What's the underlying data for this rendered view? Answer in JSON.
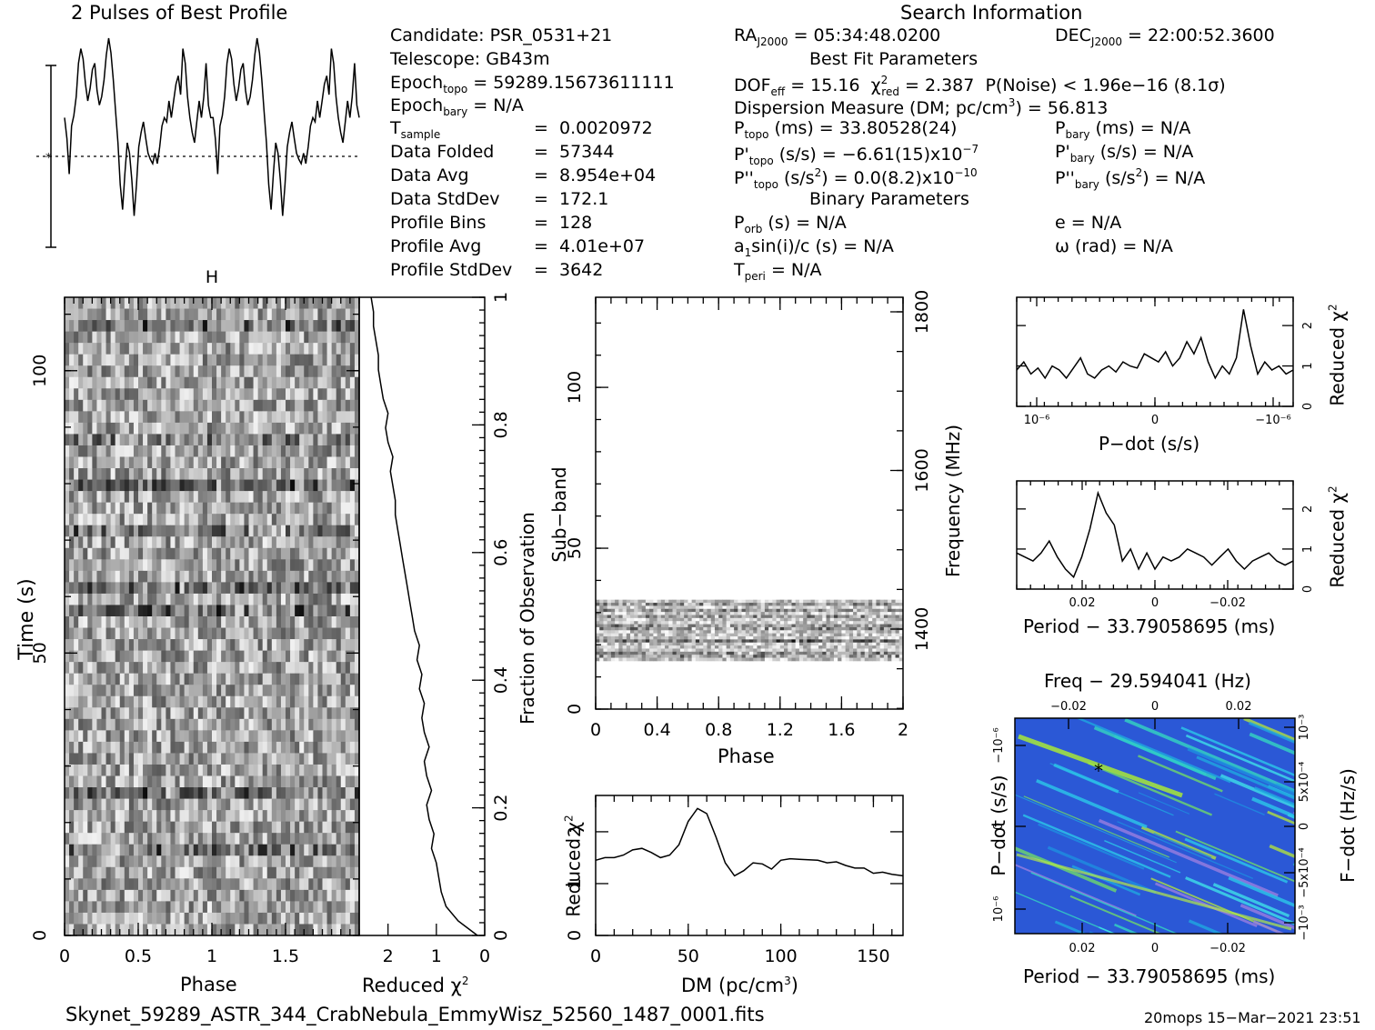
{
  "header": {
    "profile_title": "2 Pulses of Best Profile",
    "search_title": "Search Information",
    "best_fit_title": "Best Fit Parameters",
    "binary_title": "Binary Parameters",
    "candidate": "Candidate:  PSR_0531+21",
    "telescope": "Telescope:  GB43m",
    "epoch_topo": "= 59289.15673611111",
    "epoch_bary": "= N/A",
    "t_sample_val": "0.0020972",
    "data_folded_label": "Data Folded",
    "data_folded_val": "57344",
    "data_avg_label": "Data Avg",
    "data_avg_val": "8.954e+04",
    "data_std_label": "Data StdDev",
    "data_std_val": "172.1",
    "profile_bins_label": "Profile Bins",
    "profile_bins_val": "128",
    "profile_avg_label": "Profile Avg",
    "profile_avg_val": "4.01e+07",
    "profile_std_label": "Profile StdDev",
    "profile_std_val": "3642",
    "ra": "= 05:34:48.0200",
    "dec": "= 22:00:52.3600",
    "dof_val": "= 15.16",
    "chi_val": "= 2.387",
    "pnoise": "P(Noise) < 1.96e−16   (8.1σ)",
    "dm_line_a": "Dispersion Measure (DM; pc/cm",
    "dm_line_b": ") = 56.813",
    "p_topo": "(ms) =  33.80528(24)",
    "p_bary": "(ms) = N/A",
    "pd_topo": "(s/s) = −6.61(15)x10",
    "pd_topo_exp": "−7",
    "pd_bary": "(s/s) = N/A",
    "pdd_topo": "(s/s",
    "pdd_topo_b": ") = 0.0(8.2)x10",
    "pdd_topo_exp": "−10",
    "pdd_bary": "(s/s",
    "pdd_bary_b": ") = N/A",
    "p_orb": "(s) = N/A",
    "e_val": "e = N/A",
    "a1": "a",
    "a1_b": "sin(i)/c (s) = N/A",
    "omega": "ω (rad) = N/A",
    "t_peri": "= N/A"
  },
  "footer": {
    "filename": "Skynet_59289_ASTR_344_CrabNebula_EmmyWisz_52560_1487_0001.fits",
    "stamp": "20mops 15−Mar−2021 23:51"
  },
  "labels": {
    "phase": "Phase",
    "time": "Time (s)",
    "reduced": "Reduced χ",
    "fraction": "Fraction of Observation",
    "subband": "Sub−band",
    "frequency": "Frequency (MHz)",
    "dm": "DM (pc/cm",
    "dm_close": ")",
    "pdot": "P−dot (s/s)",
    "period": "Period − 33.79058695 (ms)",
    "freq_top": "Freq − 29.594041 (Hz)",
    "fdot": "F−dot (Hz/s)"
  },
  "chart_data": [
    {
      "type": "line",
      "name": "profile",
      "title": "2 Pulses of Best Profile",
      "x": "phase 0-2",
      "values": [
        0.62,
        0.52,
        0.35,
        0.58,
        0.63,
        0.72,
        0.88,
        0.95,
        0.9,
        0.78,
        0.7,
        0.76,
        0.85,
        0.88,
        0.75,
        0.68,
        0.72,
        0.8,
        0.92,
        1.0,
        0.93,
        0.8,
        0.65,
        0.5,
        0.3,
        0.18,
        0.35,
        0.5,
        0.45,
        0.32,
        0.15,
        0.3,
        0.48,
        0.55,
        0.6,
        0.52,
        0.45,
        0.42,
        0.4,
        0.45,
        0.4,
        0.48,
        0.58,
        0.62,
        0.6,
        0.7,
        0.62,
        0.7,
        0.78,
        0.82,
        0.73,
        0.95,
        0.88,
        0.72,
        0.62,
        0.55,
        0.5,
        0.6,
        0.7,
        0.62,
        0.72,
        0.88,
        0.68,
        0.62,
        0.62,
        0.52,
        0.35,
        0.58,
        0.63,
        0.72,
        0.88,
        0.95,
        0.9,
        0.78,
        0.7,
        0.76,
        0.85,
        0.88,
        0.75,
        0.68,
        0.72,
        0.8,
        0.92,
        1.0,
        0.93,
        0.8,
        0.65,
        0.5,
        0.3,
        0.18,
        0.35,
        0.5,
        0.45,
        0.32,
        0.15,
        0.3,
        0.48,
        0.55,
        0.6,
        0.52,
        0.45,
        0.42,
        0.4,
        0.45,
        0.4,
        0.48,
        0.58,
        0.62,
        0.6,
        0.7,
        0.62,
        0.7,
        0.78,
        0.82,
        0.73,
        0.95,
        0.88,
        0.72,
        0.62,
        0.55,
        0.5,
        0.6,
        0.7,
        0.62,
        0.72,
        0.88,
        0.68,
        0.62
      ]
    },
    {
      "type": "heatmap",
      "name": "time-phase",
      "xlabel": "Phase",
      "ylabel": "Time (s)",
      "xlim": [
        0,
        2
      ],
      "ylim": [
        0,
        113
      ],
      "x_ticks": [
        "0",
        "0.5",
        "1",
        "1.5"
      ],
      "y_ticks": [
        "0",
        "50",
        "100"
      ],
      "right_ticks": [
        "0",
        "0.2",
        "0.4",
        "0.6",
        "0.8",
        "1"
      ]
    },
    {
      "type": "line",
      "name": "reduced-chi-vs-time",
      "xlabel": "Reduced χ²",
      "x_ticks": [
        "2",
        "1",
        "0"
      ],
      "values": [
        0.15,
        0.55,
        0.8,
        0.9,
        0.95,
        1.0,
        1.1,
        1.05,
        1.15,
        1.2,
        1.1,
        1.2,
        1.25,
        1.15,
        1.25,
        1.3,
        1.25,
        1.35,
        1.3,
        1.4,
        1.35,
        1.45,
        1.5,
        1.55,
        1.6,
        1.65,
        1.7,
        1.75,
        1.8,
        1.85,
        1.85,
        1.9,
        1.95,
        1.9,
        2.0,
        2.05,
        2.0,
        2.1,
        2.15,
        2.2,
        2.2,
        2.25,
        2.3,
        2.3,
        2.35
      ]
    },
    {
      "type": "heatmap",
      "name": "subband-phase",
      "xlabel": "Phase",
      "ylabel": "Sub−band",
      "xlim": [
        0,
        2
      ],
      "ylim": [
        0,
        128
      ],
      "x_ticks": [
        "0",
        "0.4",
        "0.8",
        "1.2",
        "1.6",
        "2"
      ],
      "y_ticks": [
        "0",
        "50",
        "100"
      ],
      "freq_ticks": [
        "1400",
        "1600",
        "1800"
      ]
    },
    {
      "type": "line",
      "name": "dm-curve",
      "xlabel": "DM (pc/cm³)",
      "ylabel": "Reduced χ²",
      "xlim": [
        0,
        166
      ],
      "ylim": [
        0,
        2.7
      ],
      "x_ticks": [
        "0",
        "50",
        "100",
        "150"
      ],
      "y_ticks": [
        "0",
        "1",
        "2"
      ],
      "x": [
        0,
        5,
        10,
        15,
        20,
        25,
        30,
        35,
        40,
        45,
        50,
        55,
        60,
        65,
        70,
        75,
        80,
        85,
        90,
        95,
        100,
        105,
        110,
        115,
        120,
        125,
        130,
        135,
        140,
        145,
        150,
        155,
        160,
        166
      ],
      "values": [
        1.45,
        1.5,
        1.5,
        1.55,
        1.65,
        1.68,
        1.6,
        1.5,
        1.55,
        1.75,
        2.2,
        2.45,
        2.35,
        1.9,
        1.4,
        1.15,
        1.25,
        1.4,
        1.38,
        1.28,
        1.45,
        1.48,
        1.47,
        1.46,
        1.45,
        1.4,
        1.42,
        1.35,
        1.3,
        1.3,
        1.2,
        1.22,
        1.18,
        1.15
      ]
    },
    {
      "type": "line",
      "name": "pdot-curve",
      "xlabel": "P−dot (s/s)",
      "ylabel": "Reduced χ²",
      "ylim": [
        0,
        2.7
      ],
      "x_ticks": [
        "10⁻⁶",
        "0",
        "−10⁻⁶"
      ],
      "y_ticks": [
        "0",
        "1",
        "2"
      ],
      "values": [
        0.9,
        1.1,
        0.8,
        0.95,
        0.7,
        1.0,
        0.9,
        0.7,
        0.95,
        1.2,
        0.8,
        0.7,
        0.9,
        1.0,
        0.85,
        1.1,
        1.0,
        0.95,
        1.3,
        1.2,
        1.1,
        1.35,
        1.0,
        1.2,
        1.6,
        1.3,
        1.7,
        1.1,
        0.7,
        1.0,
        0.8,
        1.2,
        2.4,
        1.5,
        0.8,
        1.1,
        0.9,
        1.0,
        0.8,
        0.9
      ]
    },
    {
      "type": "line",
      "name": "period-curve",
      "xlabel": "Period − 33.79058695 (ms)",
      "ylabel": "Reduced χ²",
      "ylim": [
        0,
        2.7
      ],
      "x_ticks": [
        "0.02",
        "0",
        "−0.02"
      ],
      "y_ticks": [
        "0",
        "1",
        "2"
      ],
      "values": [
        0.9,
        0.8,
        0.7,
        0.9,
        1.2,
        0.8,
        0.5,
        0.3,
        0.8,
        1.5,
        2.4,
        1.9,
        1.6,
        0.7,
        1.0,
        0.5,
        0.9,
        0.5,
        0.8,
        0.7,
        0.8,
        1.0,
        0.9,
        0.8,
        0.6,
        0.8,
        1.0,
        0.7,
        0.5,
        0.7,
        0.8,
        0.9,
        0.7,
        0.6,
        0.7
      ]
    },
    {
      "type": "heatmap",
      "name": "p-pdot-plane",
      "xlabel": "Period − 33.79058695 (ms)",
      "ylabel": "P−dot (s/s)",
      "top_label": "Freq − 29.594041 (Hz)",
      "right_label": "F−dot (Hz/s)",
      "x_ticks": [
        "0.02",
        "0",
        "−0.02"
      ],
      "top_ticks": [
        "−0.02",
        "0",
        "0.02"
      ],
      "y_ticks": [
        "−10⁻⁶",
        "0",
        "10⁻⁶"
      ],
      "right_ticks": [
        "10⁻³",
        "5x10⁻⁴",
        "0",
        "−5x10⁻⁴",
        "−10⁻³"
      ]
    }
  ]
}
